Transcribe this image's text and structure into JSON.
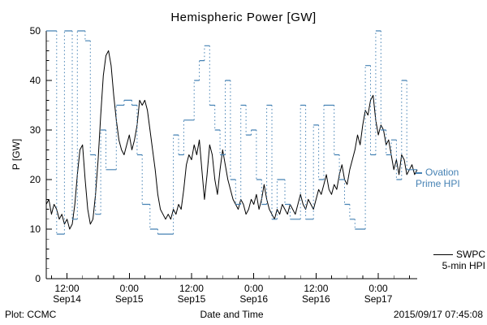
{
  "chart": {
    "title": "Hemispheric Power [GW]",
    "footer_left": "Plot: CCMC",
    "footer_right": "2015/09/17 07:45:08",
    "legend": {
      "ovation": {
        "line1": "Ovation",
        "line2": "Prime HPI",
        "color": "#4682b4"
      },
      "swpc": {
        "line1": "SWPC",
        "line2": "5-min HPI",
        "color": "#000000"
      }
    }
  },
  "chart_data": {
    "type": "line",
    "title": "Hemispheric Power [GW]",
    "xlabel": "Date and Time",
    "ylabel": "P [GW]",
    "ylim": [
      0,
      50
    ],
    "grid": false,
    "x_unit": "hours since Sep14 00:00",
    "xlim_hours": [
      8,
      79.5
    ],
    "y_ticks": [
      0,
      10,
      20,
      30,
      40,
      50
    ],
    "y_minor_step": 2,
    "x_minor_step_hours": 3,
    "x_ticks": [
      {
        "t": 12,
        "time": "12:00",
        "date": "Sep14"
      },
      {
        "t": 24,
        "time": "0:00",
        "date": "Sep15"
      },
      {
        "t": 36,
        "time": "12:00",
        "date": "Sep15"
      },
      {
        "t": 48,
        "time": "0:00",
        "date": "Sep16"
      },
      {
        "t": 60,
        "time": "12:00",
        "date": "Sep16"
      },
      {
        "t": 72,
        "time": "0:00",
        "date": "Sep17"
      }
    ],
    "series": [
      {
        "name": "SWPC 5-min HPI",
        "color": "#000000",
        "style": "line",
        "x_start_hours": 8,
        "x_step_hours": 0.5,
        "values": [
          15,
          16,
          13,
          15,
          14,
          12,
          13,
          11,
          12,
          10,
          11,
          15,
          21,
          26,
          27,
          20,
          14,
          11,
          12,
          17,
          24,
          33,
          41,
          45,
          46,
          43,
          37,
          32,
          28,
          26,
          25,
          27,
          29,
          26,
          28,
          31,
          36,
          35,
          36,
          34,
          30,
          26,
          22,
          17,
          14,
          13,
          12,
          13,
          12,
          14,
          13,
          15,
          14,
          18,
          23,
          25,
          24,
          27,
          25,
          28,
          22,
          16,
          21,
          27,
          25,
          20,
          17,
          22,
          26,
          23,
          20,
          18,
          16,
          15,
          14,
          16,
          15,
          13,
          14,
          16,
          15,
          17,
          14,
          16,
          19,
          16,
          14,
          13,
          12,
          14,
          13,
          15,
          14,
          13,
          15,
          14,
          13,
          15,
          17,
          15,
          14,
          16,
          15,
          14,
          16,
          18,
          17,
          19,
          21,
          18,
          17,
          19,
          18,
          21,
          23,
          20,
          19,
          22,
          24,
          26,
          29,
          27,
          31,
          34,
          33,
          36,
          37,
          32,
          29,
          31,
          30,
          27,
          28,
          25,
          22,
          24,
          21,
          25,
          24,
          21,
          22,
          23,
          21,
          22
        ]
      },
      {
        "name": "Ovation Prime HPI",
        "color": "#4682b4",
        "style": "step-dotted",
        "x": [
          8,
          10,
          11.5,
          13,
          14,
          15.5,
          16.5,
          17.5,
          18.5,
          19.5,
          21.5,
          23,
          24.5,
          25.5,
          26.5,
          28,
          29.5,
          32.5,
          33.5,
          34.5,
          36.5,
          37.5,
          38.5,
          39.5,
          40.5,
          41.5,
          42.5,
          43.5,
          44.5,
          45.5,
          46.5,
          47.5,
          48.5,
          49.5,
          50.5,
          51.5,
          52.5,
          54,
          55,
          57,
          58,
          59.5,
          60.5,
          61.5,
          63.5,
          64.5,
          65.5,
          66.5,
          67.5,
          69.5,
          70.5,
          71.5,
          72.5,
          73.5,
          74.5,
          75.5,
          76.5,
          77.5,
          79.5
        ],
        "values": [
          50,
          9,
          50,
          12,
          50,
          48,
          25,
          13,
          30,
          22,
          35,
          36,
          35,
          25,
          15,
          10,
          9,
          29,
          25,
          32,
          40,
          44,
          47,
          35,
          30,
          25,
          40,
          20,
          15,
          35,
          29,
          30,
          20,
          15,
          35,
          12,
          20,
          15,
          12,
          35,
          12,
          31,
          20,
          35,
          25,
          20,
          15,
          12,
          10,
          43,
          25,
          50,
          30,
          25,
          28,
          20,
          40,
          22,
          22
        ]
      }
    ]
  }
}
